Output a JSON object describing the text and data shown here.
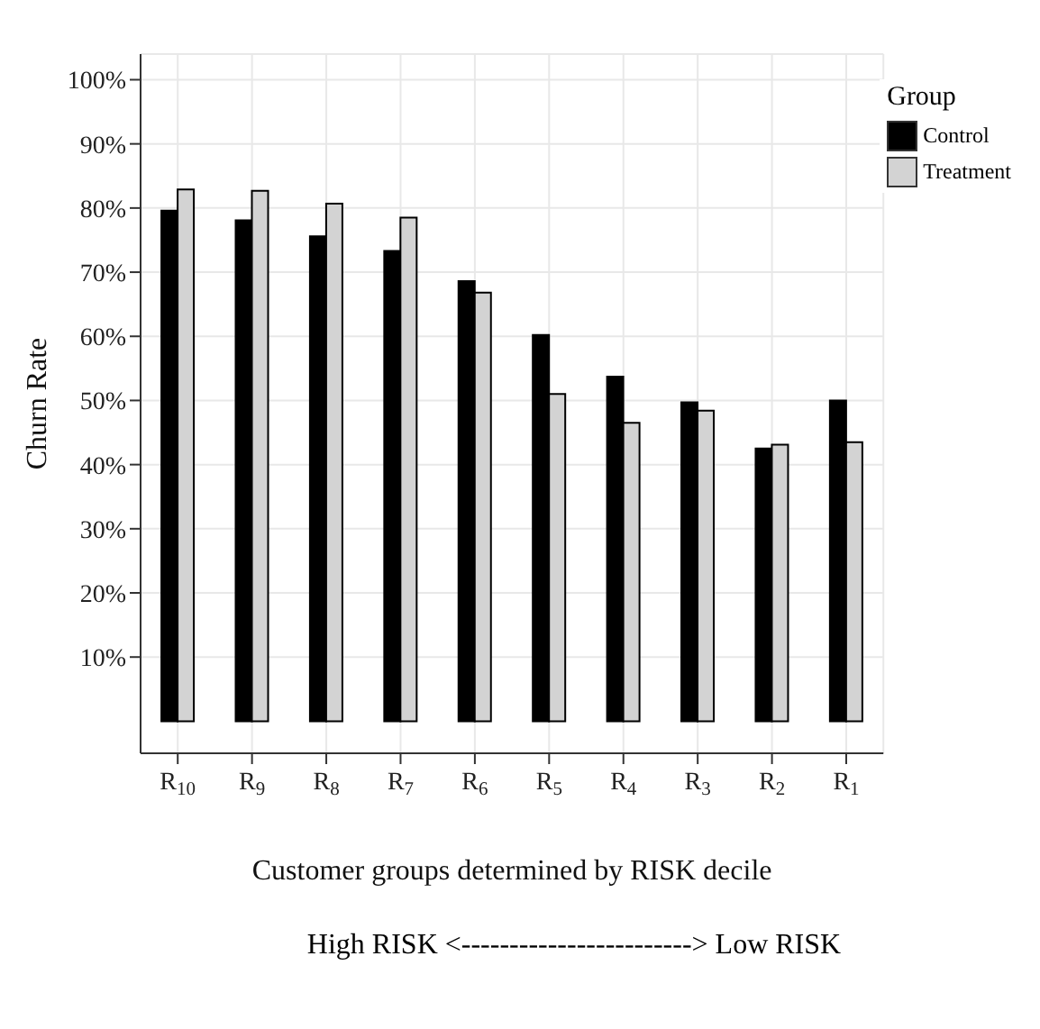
{
  "chart_data": {
    "type": "bar",
    "xlabel": "Customer groups determined by RISK decile",
    "ylabel": "Churn Rate",
    "legend_title": "Group",
    "categories": [
      "R$_{10}$",
      "R$_{9}$",
      "R$_{8}$",
      "R$_{7}$",
      "R$_{6}$",
      "R$_{5}$",
      "R$_{4}$",
      "R$_{3}$",
      "R$_{2}$",
      "R$_{1}$"
    ],
    "series": [
      {
        "name": "Control",
        "color": "#000000",
        "values": [
          79.6,
          78.1,
          75.6,
          73.3,
          68.6,
          60.2,
          53.7,
          49.7,
          42.5,
          50.0
        ]
      },
      {
        "name": "Treatment",
        "color": "#d3d3d3",
        "values": [
          82.9,
          82.7,
          80.7,
          78.5,
          66.8,
          51.0,
          46.5,
          48.4,
          43.1,
          43.5
        ]
      }
    ],
    "ylim": [
      -5,
      104
    ],
    "yticks": [
      {
        "value": 10,
        "label": "10%"
      },
      {
        "value": 20,
        "label": "20%"
      },
      {
        "value": 30,
        "label": "30%"
      },
      {
        "value": 40,
        "label": "40%"
      },
      {
        "value": 50,
        "label": "50%"
      },
      {
        "value": 60,
        "label": "60%"
      },
      {
        "value": 70,
        "label": "70%"
      },
      {
        "value": 80,
        "label": "80%"
      },
      {
        "value": 90,
        "label": "90%"
      },
      {
        "value": 100,
        "label": "100%"
      }
    ],
    "grid": true,
    "legend": "top right",
    "annotations": [
      "High RISK <------------------------> Low RISK"
    ]
  }
}
